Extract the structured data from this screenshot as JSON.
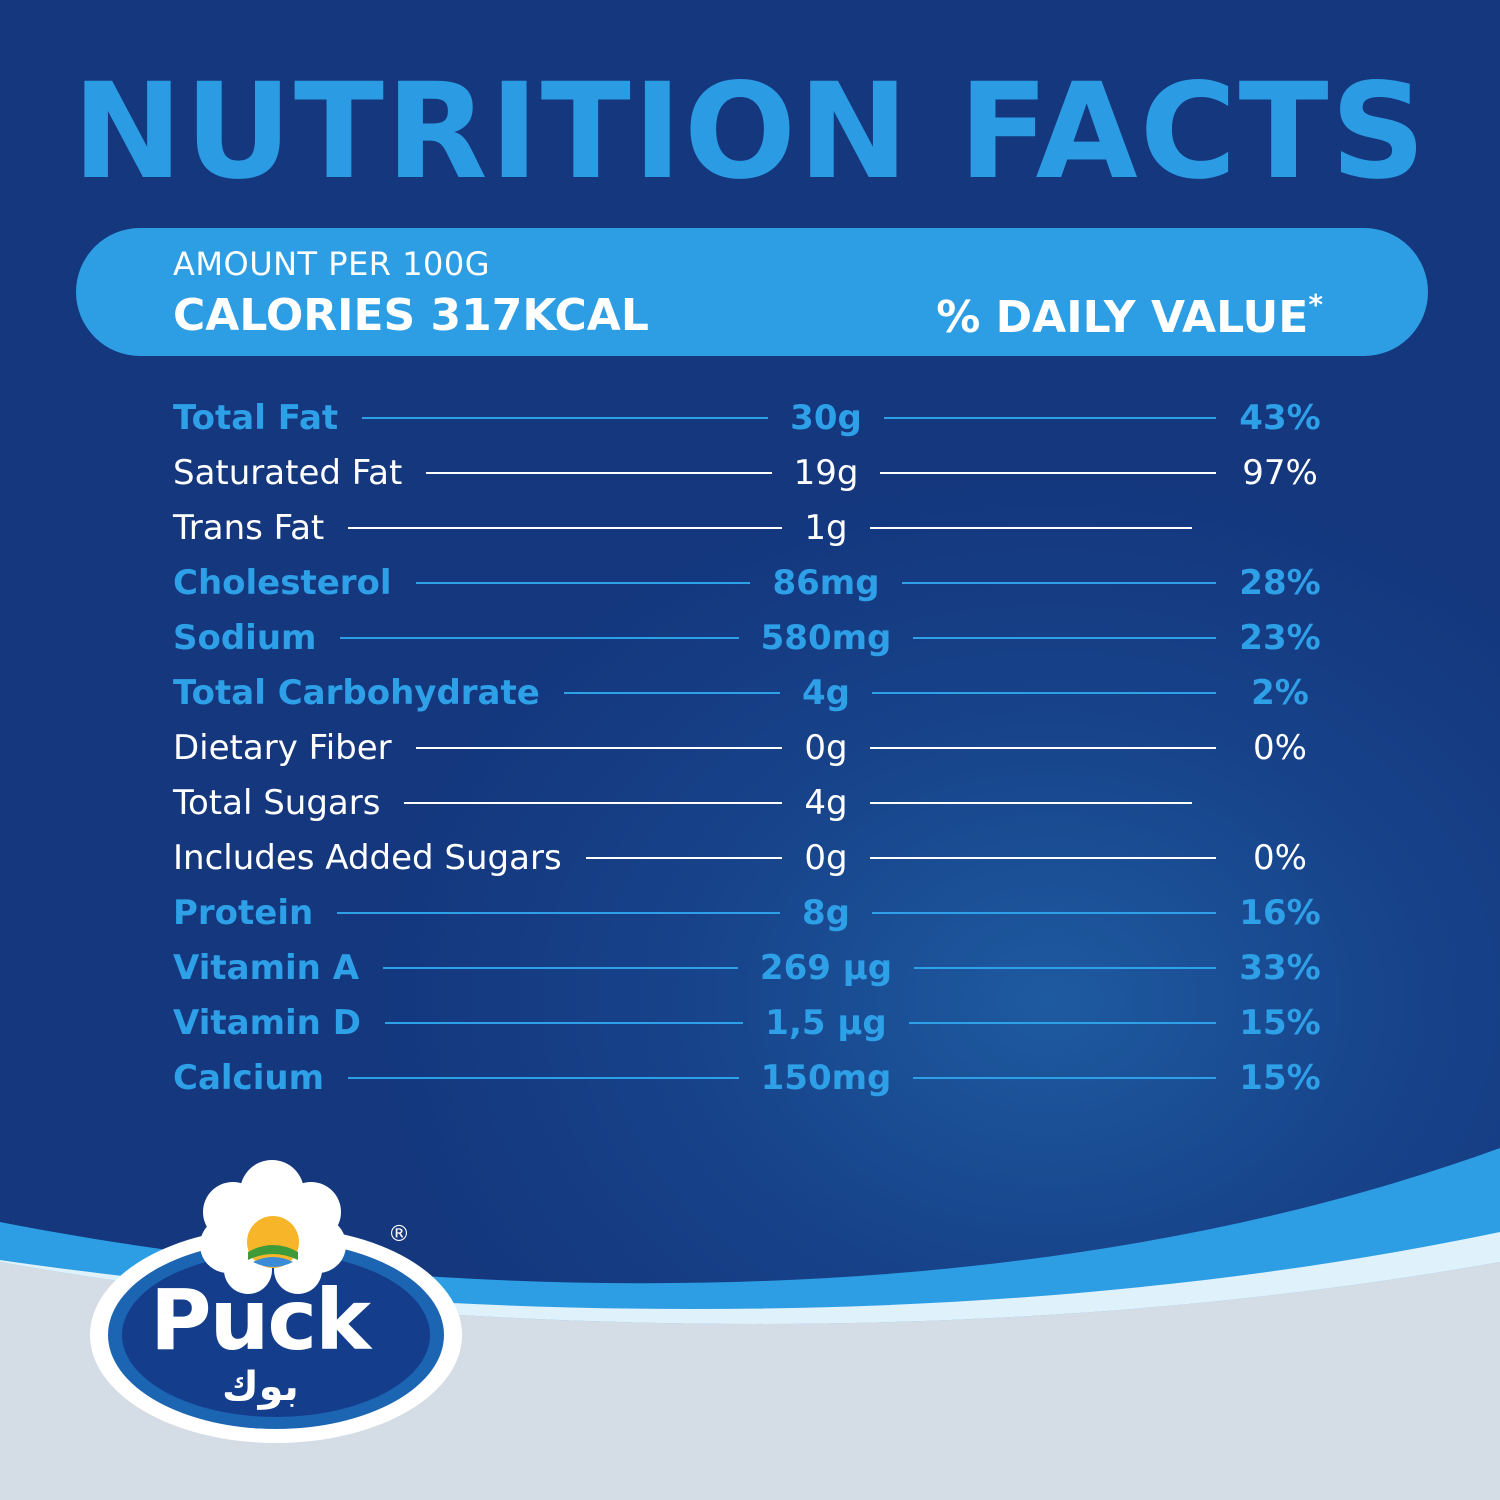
{
  "title": "NUTRITION FACTS",
  "header": {
    "amount": "AMOUNT PER 100G",
    "calories": "CALORIES 317KCAL",
    "daily_value": "% DAILY VALUE",
    "daily_value_mark": "*"
  },
  "nutrients": [
    {
      "name": "Total Fat",
      "amount": "30g",
      "dv": "43%",
      "style": "bold"
    },
    {
      "name": "Saturated Fat",
      "amount": "19g",
      "dv": "97%",
      "style": "regular"
    },
    {
      "name": "Trans Fat",
      "amount": "1g",
      "dv": "",
      "style": "regular"
    },
    {
      "name": "Cholesterol",
      "amount": "86mg",
      "dv": "28%",
      "style": "bold"
    },
    {
      "name": "Sodium",
      "amount": "580mg",
      "dv": "23%",
      "style": "bold"
    },
    {
      "name": "Total Carbohydrate",
      "amount": "4g",
      "dv": "2%",
      "style": "bold"
    },
    {
      "name": "Dietary Fiber",
      "amount": "0g",
      "dv": "0%",
      "style": "regular"
    },
    {
      "name": "Total Sugars",
      "amount": "4g",
      "dv": "",
      "style": "regular"
    },
    {
      "name": "Includes Added Sugars",
      "amount": "0g",
      "dv": "0%",
      "style": "regular"
    },
    {
      "name": "Protein",
      "amount": "8g",
      "dv": "16%",
      "style": "bold"
    },
    {
      "name": "Vitamin A",
      "amount": "269 µg",
      "dv": "33%",
      "style": "bold"
    },
    {
      "name": "Vitamin D",
      "amount": "1,5 µg",
      "dv": "15%",
      "style": "bold"
    },
    {
      "name": "Calcium",
      "amount": "150mg",
      "dv": "15%",
      "style": "bold"
    }
  ],
  "logo": {
    "brand": "Puck",
    "arabic": "بوك",
    "registered": "®"
  },
  "colors": {
    "background": "#14377e",
    "accent": "#2d9ee4",
    "text": "#ffffff"
  }
}
